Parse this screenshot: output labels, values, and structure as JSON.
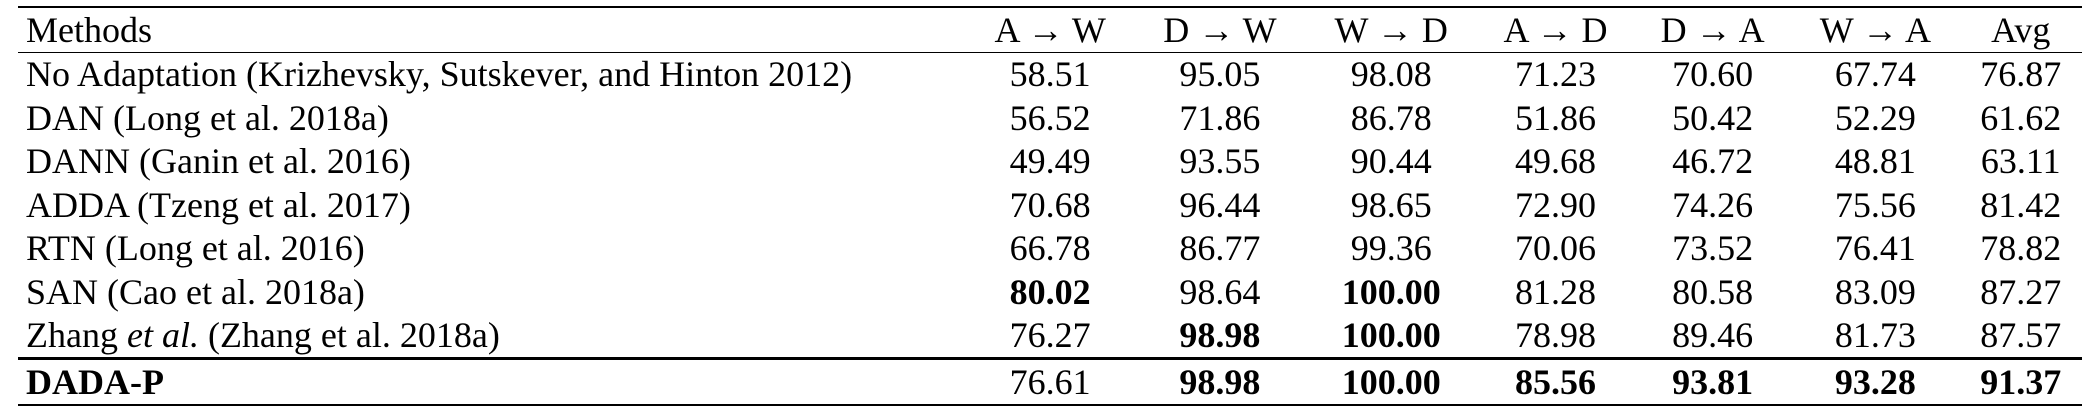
{
  "columns": {
    "method": "Methods",
    "c1": "A → W",
    "c2": "D → W",
    "c3": "W → D",
    "c4": "A → D",
    "c5": "D → A",
    "c6": "W → A",
    "avg": "Avg"
  },
  "rows": [
    {
      "method": "No Adaptation (Krizhevsky, Sutskever, and Hinton 2012)",
      "values": [
        "58.51",
        "95.05",
        "98.08",
        "71.23",
        "70.60",
        "67.74",
        "76.87"
      ]
    },
    {
      "method": "DAN (Long et al. 2018a)",
      "values": [
        "56.52",
        "71.86",
        "86.78",
        "51.86",
        "50.42",
        "52.29",
        "61.62"
      ]
    },
    {
      "method": "DANN (Ganin et al. 2016)",
      "values": [
        "49.49",
        "93.55",
        "90.44",
        "49.68",
        "46.72",
        "48.81",
        "63.11"
      ]
    },
    {
      "method": "ADDA (Tzeng et al. 2017)",
      "values": [
        "70.68",
        "96.44",
        "98.65",
        "72.90",
        "74.26",
        "75.56",
        "81.42"
      ]
    },
    {
      "method": "RTN (Long et al. 2016)",
      "values": [
        "66.78",
        "86.77",
        "99.36",
        "70.06",
        "73.52",
        "76.41",
        "78.82"
      ]
    },
    {
      "method": "SAN (Cao et al. 2018a)",
      "values": [
        "80.02",
        "98.64",
        "100.00",
        "81.28",
        "80.58",
        "83.09",
        "87.27"
      ]
    },
    {
      "method_prefix": "Zhang ",
      "method_italic": "et al.",
      "method_suffix": " (Zhang et al. 2018a)",
      "values": [
        "76.27",
        "98.98",
        "100.00",
        "78.98",
        "89.46",
        "81.73",
        "87.57"
      ]
    },
    {
      "method": "DADA-P",
      "values": [
        "76.61",
        "98.98",
        "100.00",
        "85.56",
        "93.81",
        "93.28",
        "91.37"
      ]
    }
  ]
}
